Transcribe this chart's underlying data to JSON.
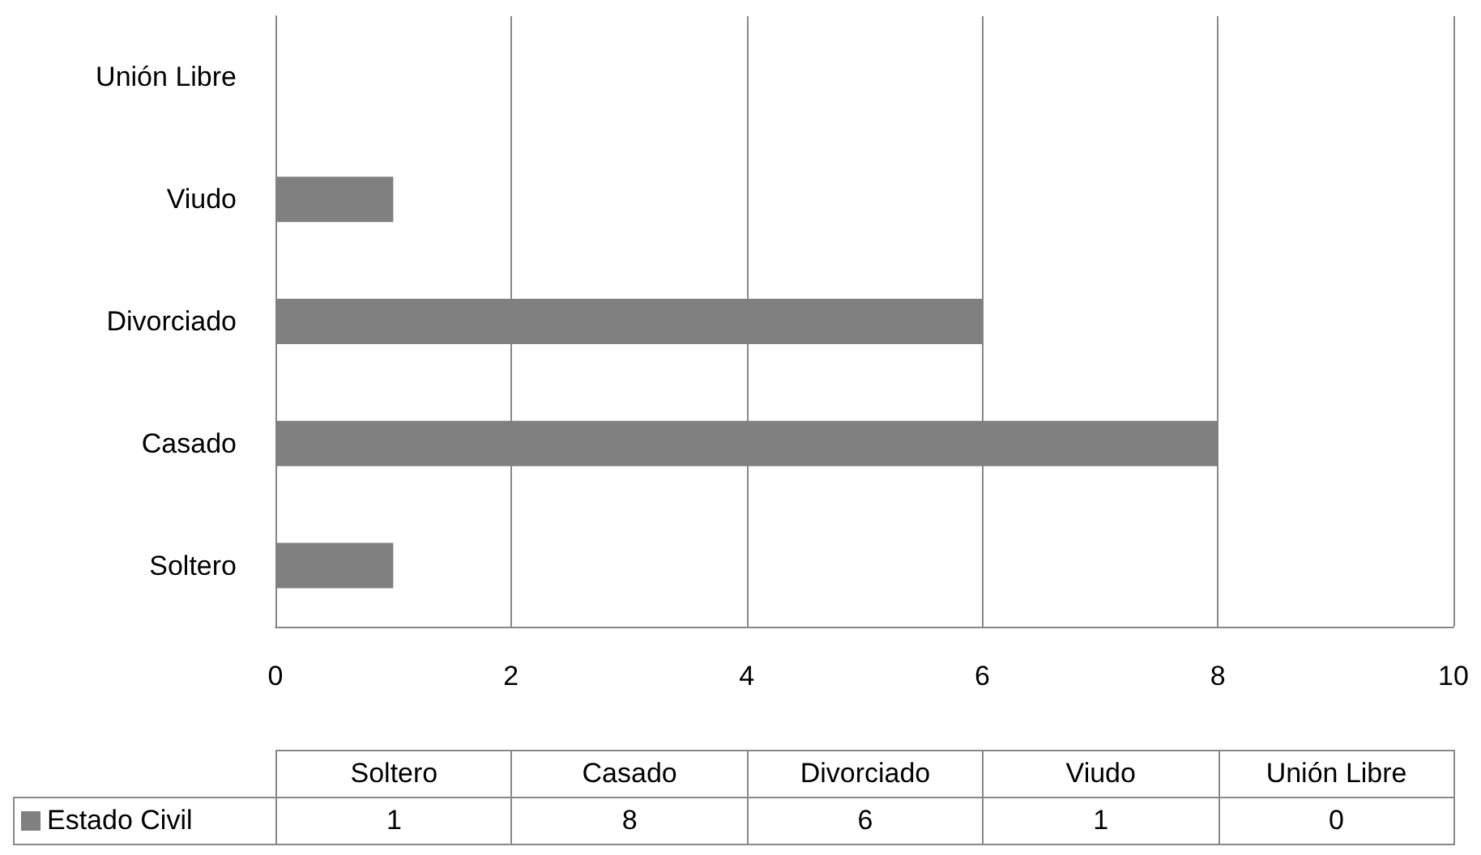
{
  "chart_data": {
    "type": "bar",
    "orientation": "horizontal",
    "categories": [
      "Unión Libre",
      "Viudo",
      "Divorciado",
      "Casado",
      "Soltero"
    ],
    "series": [
      {
        "name": "Estado Civil",
        "color": "#808080",
        "values": [
          0,
          1,
          6,
          8,
          1
        ]
      }
    ],
    "xlim": [
      0,
      10
    ],
    "xticks": [
      0,
      2,
      4,
      6,
      8,
      10
    ],
    "grid": "x",
    "legend": "bottom",
    "annotations": [
      "1",
      "8",
      "6",
      "1",
      "0"
    ]
  }
}
